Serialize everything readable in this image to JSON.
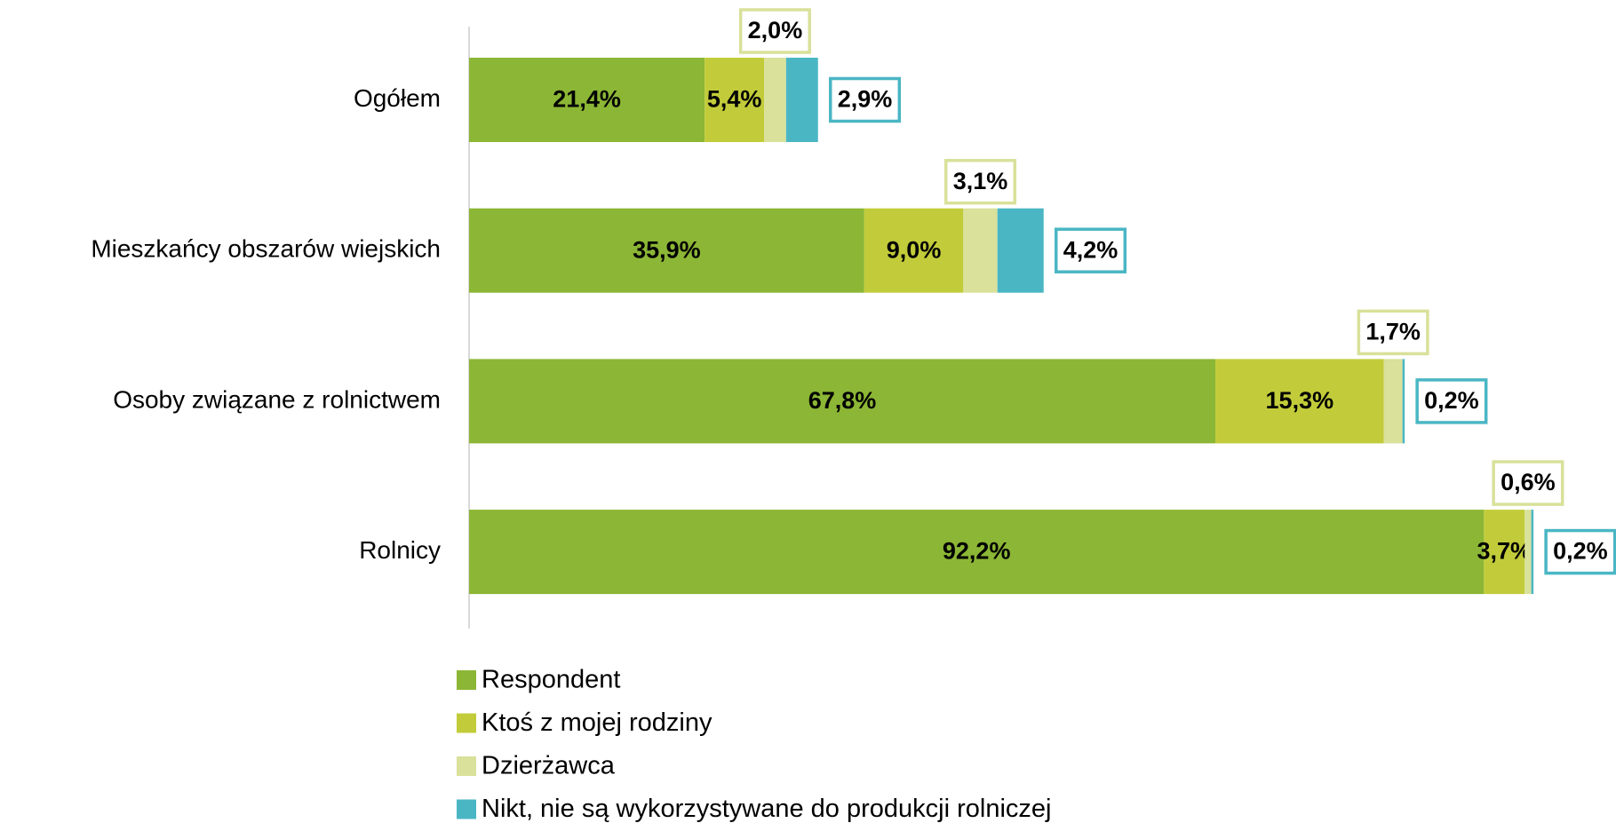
{
  "chart_data": {
    "type": "stacked-bar-horizontal",
    "categories": [
      "Ogółem",
      "Mieszkańcy obszarów wiejskich",
      "Osoby związane z rolnictwem",
      "Rolnicy"
    ],
    "series": [
      {
        "name": "Respondent",
        "color": "#8cb635",
        "values": [
          21.4,
          35.9,
          67.8,
          92.2
        ],
        "value_labels": [
          "21,4%",
          "35,9%",
          "67,8%",
          "92,2%"
        ]
      },
      {
        "name": "Ktoś z mojej rodziny",
        "color": "#c2cc3a",
        "values": [
          5.4,
          9.0,
          15.3,
          3.7
        ],
        "value_labels": [
          "5,4%",
          "9,0%",
          "15,3%",
          "3,7%"
        ]
      },
      {
        "name": "Dzierżawca",
        "color": "#d9e19a",
        "values": [
          2.0,
          3.1,
          1.7,
          0.6
        ],
        "value_labels": [
          "2,0%",
          "3,1%",
          "1,7%",
          "0,6%"
        ]
      },
      {
        "name": "Nikt, nie są wykorzystywane do produkcji rolniczej",
        "color": "#4ab6c4",
        "values": [
          2.9,
          4.2,
          0.2,
          0.2
        ],
        "value_labels": [
          "2,9%",
          "4,2%",
          "0,2%",
          "0,2%"
        ]
      }
    ],
    "xlim": [
      0,
      100
    ],
    "legend": "bottom"
  }
}
